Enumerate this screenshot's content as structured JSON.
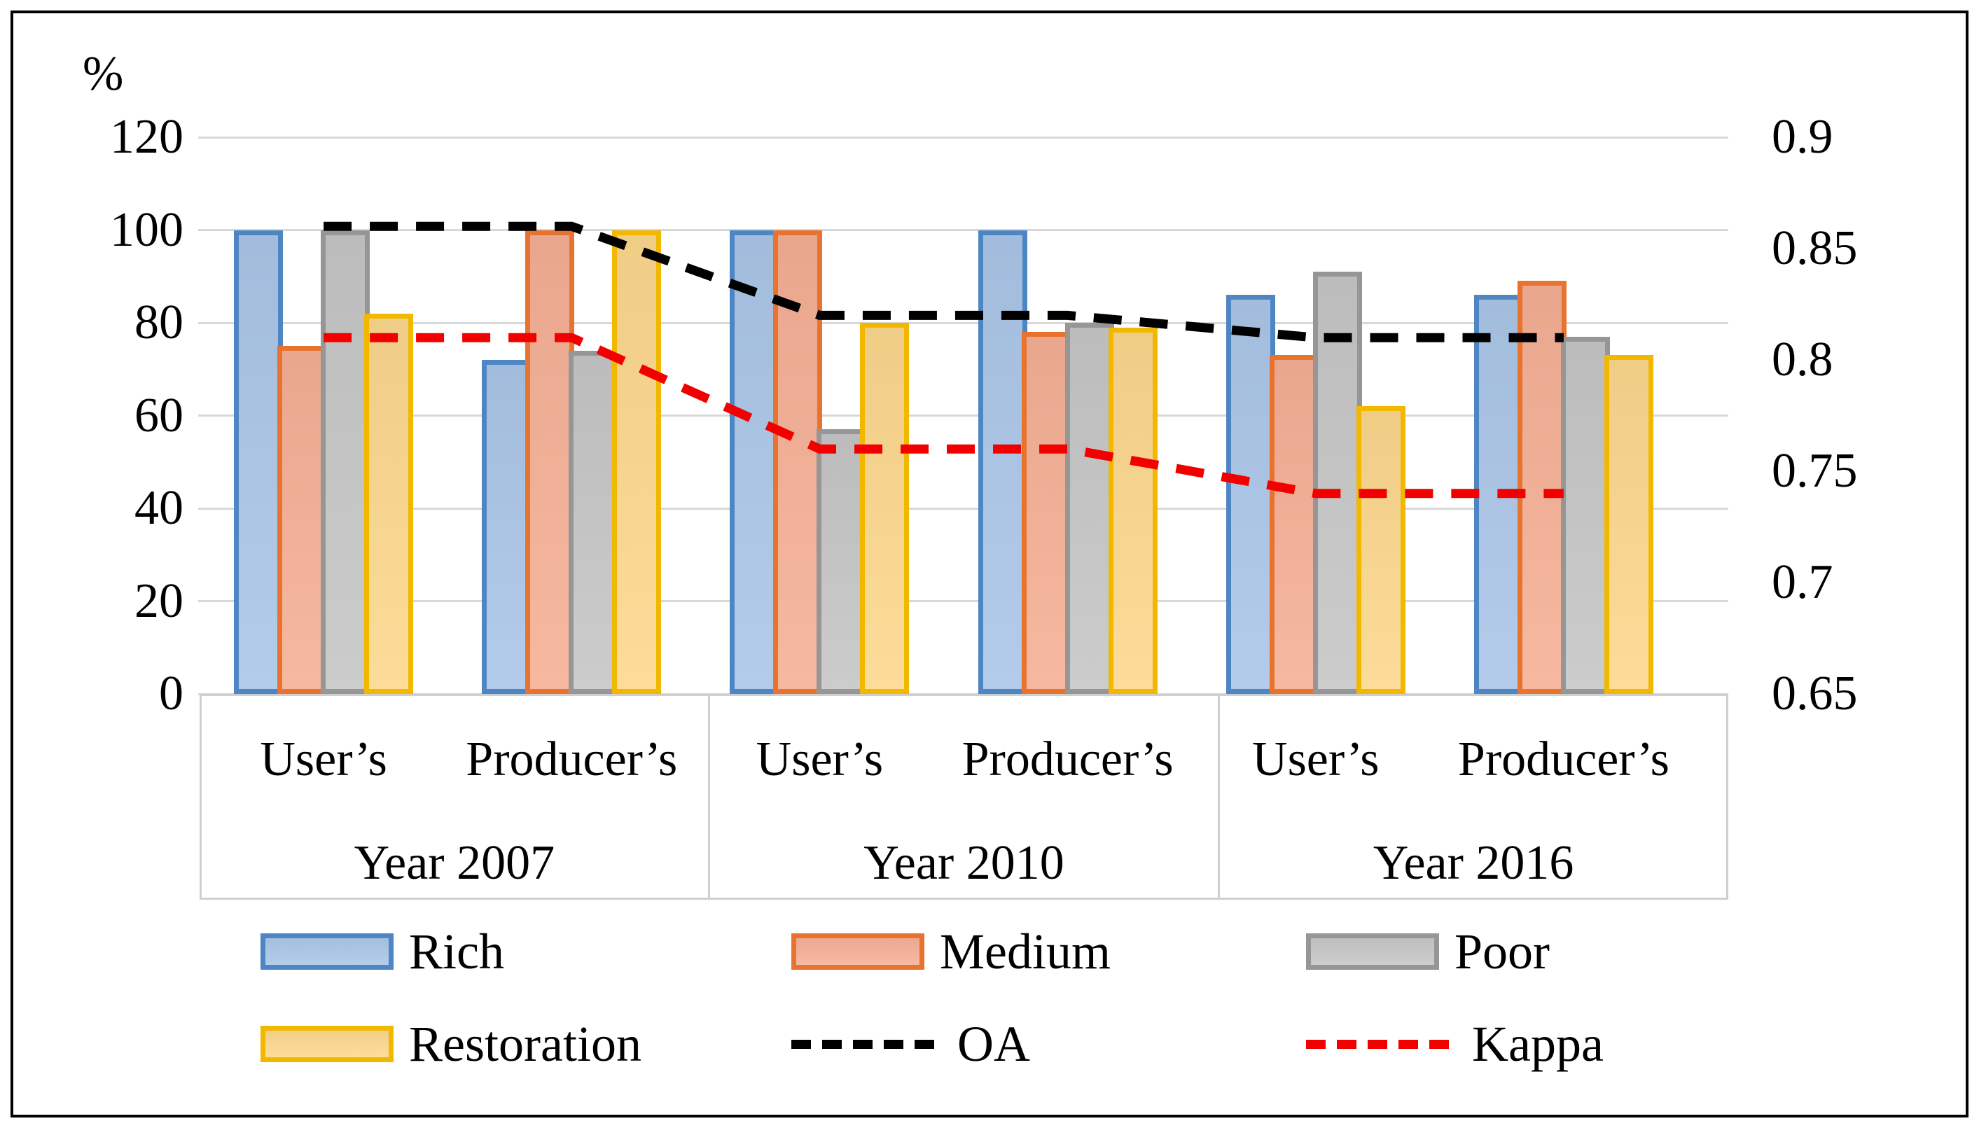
{
  "chart_data": {
    "type": "bar+line",
    "title": "",
    "percent_axis": {
      "label": "%",
      "ticks": [
        120,
        100,
        80,
        60,
        40,
        20,
        0
      ],
      "min": 0,
      "max": 120
    },
    "secondary_axis": {
      "ticks": [
        "0.9",
        "0.85",
        "0.8",
        "0.75",
        "0.7",
        "0.65"
      ],
      "min": 0.65,
      "max": 0.9
    },
    "categories": [
      "User’s",
      "Producer’s",
      "User’s",
      "Producer’s",
      "User’s",
      "Producer’s"
    ],
    "year_groups": [
      "Year 2007",
      "Year 2010",
      "Year 2016"
    ],
    "bar_series": [
      {
        "name": "Rich",
        "fill": "#ABC6E8",
        "border": "#4E86C4",
        "values": [
          100,
          72,
          100,
          100,
          86,
          86
        ]
      },
      {
        "name": "Medium",
        "fill": "#F5B095",
        "border": "#E8732E",
        "values": [
          75,
          100,
          100,
          78,
          73,
          89
        ]
      },
      {
        "name": "Poor",
        "fill": "#C6C6C6",
        "border": "#969696",
        "values": [
          100,
          74,
          57,
          80,
          91,
          77
        ]
      },
      {
        "name": "Restoration",
        "fill": "#FCD88D",
        "border": "#F2B800",
        "values": [
          82,
          100,
          80,
          79,
          62,
          73
        ]
      }
    ],
    "line_series": [
      {
        "name": "OA",
        "color": "#000000",
        "values": [
          0.86,
          0.86,
          0.82,
          0.82,
          0.81,
          0.81
        ]
      },
      {
        "name": "Kappa",
        "color": "#F20000",
        "values": [
          0.81,
          0.81,
          0.76,
          0.76,
          0.74,
          0.74
        ]
      }
    ],
    "legend": {
      "items": [
        {
          "kind": "bar",
          "index": 0
        },
        {
          "kind": "bar",
          "index": 1
        },
        {
          "kind": "bar",
          "index": 2
        },
        {
          "kind": "bar",
          "index": 3
        },
        {
          "kind": "line",
          "index": 0
        },
        {
          "kind": "line",
          "index": 1
        }
      ]
    },
    "layout_hints": {
      "grid": "horizontal",
      "legend_position": "bottom",
      "lines_on_secondary_axis": true
    }
  }
}
